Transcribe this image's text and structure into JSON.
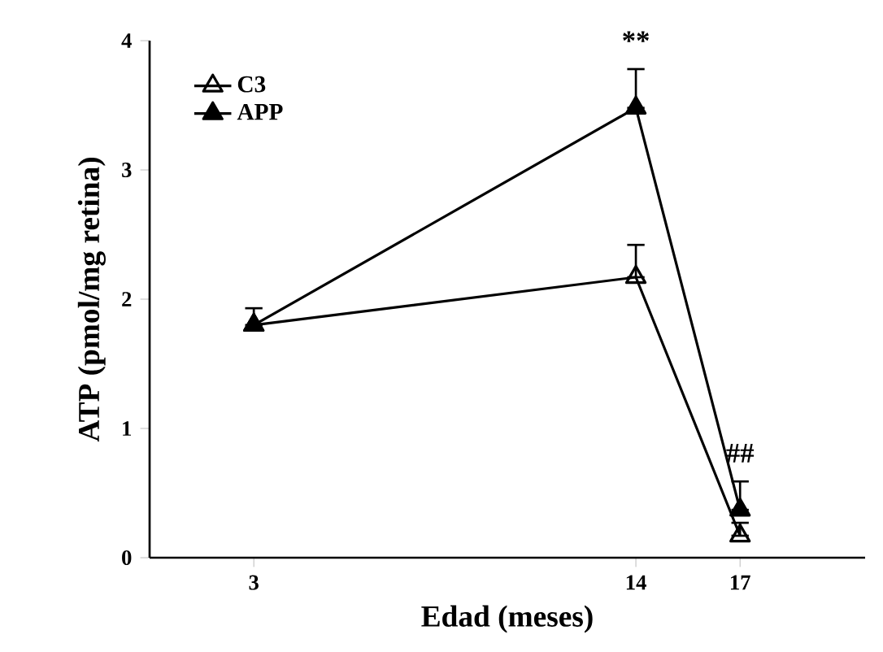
{
  "chart_data": {
    "type": "line",
    "xlabel": "Edad (meses)",
    "ylabel": "ATP (pmol/mg retina)",
    "x": [
      3,
      14,
      17
    ],
    "xlim": [
      0,
      20.6
    ],
    "xticks": [
      3,
      14,
      17
    ],
    "ylim": [
      0,
      4
    ],
    "yticks": [
      0,
      1,
      2,
      3,
      4
    ],
    "series": [
      {
        "name": "C3",
        "color": "#000000",
        "values": [
          1.8,
          2.17,
          0.17
        ],
        "errors": [
          null,
          [
            2.17,
            2.42
          ],
          [
            0.17,
            0.27
          ]
        ]
      },
      {
        "name": "APP",
        "color": "#000000",
        "values": [
          1.8,
          3.48,
          0.37
        ],
        "errors": [
          [
            1.8,
            1.93
          ],
          [
            3.48,
            3.78
          ],
          [
            0.37,
            0.59
          ]
        ]
      }
    ],
    "annotations": [
      {
        "text": "**",
        "x": 14,
        "y": 3.48
      },
      {
        "text": "##",
        "x": 17,
        "y": 0.37
      }
    ],
    "legend": "top left",
    "grid": false,
    "marker": "triangle",
    "line_style": "solid"
  }
}
